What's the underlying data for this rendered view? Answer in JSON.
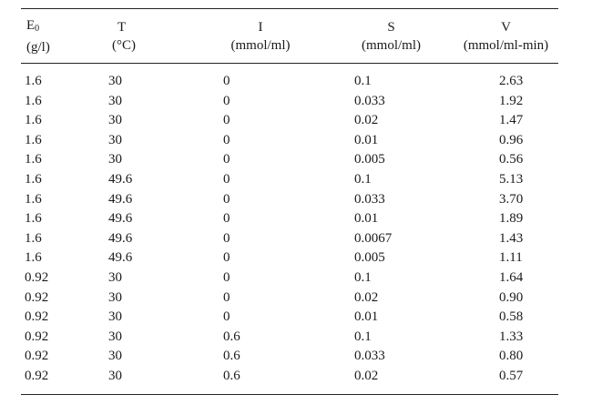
{
  "table": {
    "headers": [
      {
        "symbol": "E",
        "subscript": "0",
        "unit": "(g/l)"
      },
      {
        "symbol": "T",
        "subscript": "",
        "unit": "(°C)"
      },
      {
        "symbol": "I",
        "subscript": "",
        "unit": "(mmol/ml)"
      },
      {
        "symbol": "S",
        "subscript": "",
        "unit": "(mmol/ml)"
      },
      {
        "symbol": "V",
        "subscript": "",
        "unit": "(mmol/ml-min)"
      }
    ],
    "rows": [
      [
        "1.6",
        "30",
        "0",
        "0.1",
        "2.63"
      ],
      [
        "1.6",
        "30",
        "0",
        "0.033",
        "1.92"
      ],
      [
        "1.6",
        "30",
        "0",
        "0.02",
        "1.47"
      ],
      [
        "1.6",
        "30",
        "0",
        "0.01",
        "0.96"
      ],
      [
        "1.6",
        "30",
        "0",
        "0.005",
        "0.56"
      ],
      [
        "1.6",
        "49.6",
        "0",
        "0.1",
        "5.13"
      ],
      [
        "1.6",
        "49.6",
        "0",
        "0.033",
        "3.70"
      ],
      [
        "1.6",
        "49.6",
        "0",
        "0.01",
        "1.89"
      ],
      [
        "1.6",
        "49.6",
        "0",
        "0.0067",
        "1.43"
      ],
      [
        "1.6",
        "49.6",
        "0",
        "0.005",
        "1.11"
      ],
      [
        "0.92",
        "30",
        "0",
        "0.1",
        "1.64"
      ],
      [
        "0.92",
        "30",
        "0",
        "0.02",
        "0.90"
      ],
      [
        "0.92",
        "30",
        "0",
        "0.01",
        "0.58"
      ],
      [
        "0.92",
        "30",
        "0.6",
        "0.1",
        "1.33"
      ],
      [
        "0.92",
        "30",
        "0.6",
        "0.033",
        "0.80"
      ],
      [
        "0.92",
        "30",
        "0.6",
        "0.02",
        "0.57"
      ]
    ]
  }
}
